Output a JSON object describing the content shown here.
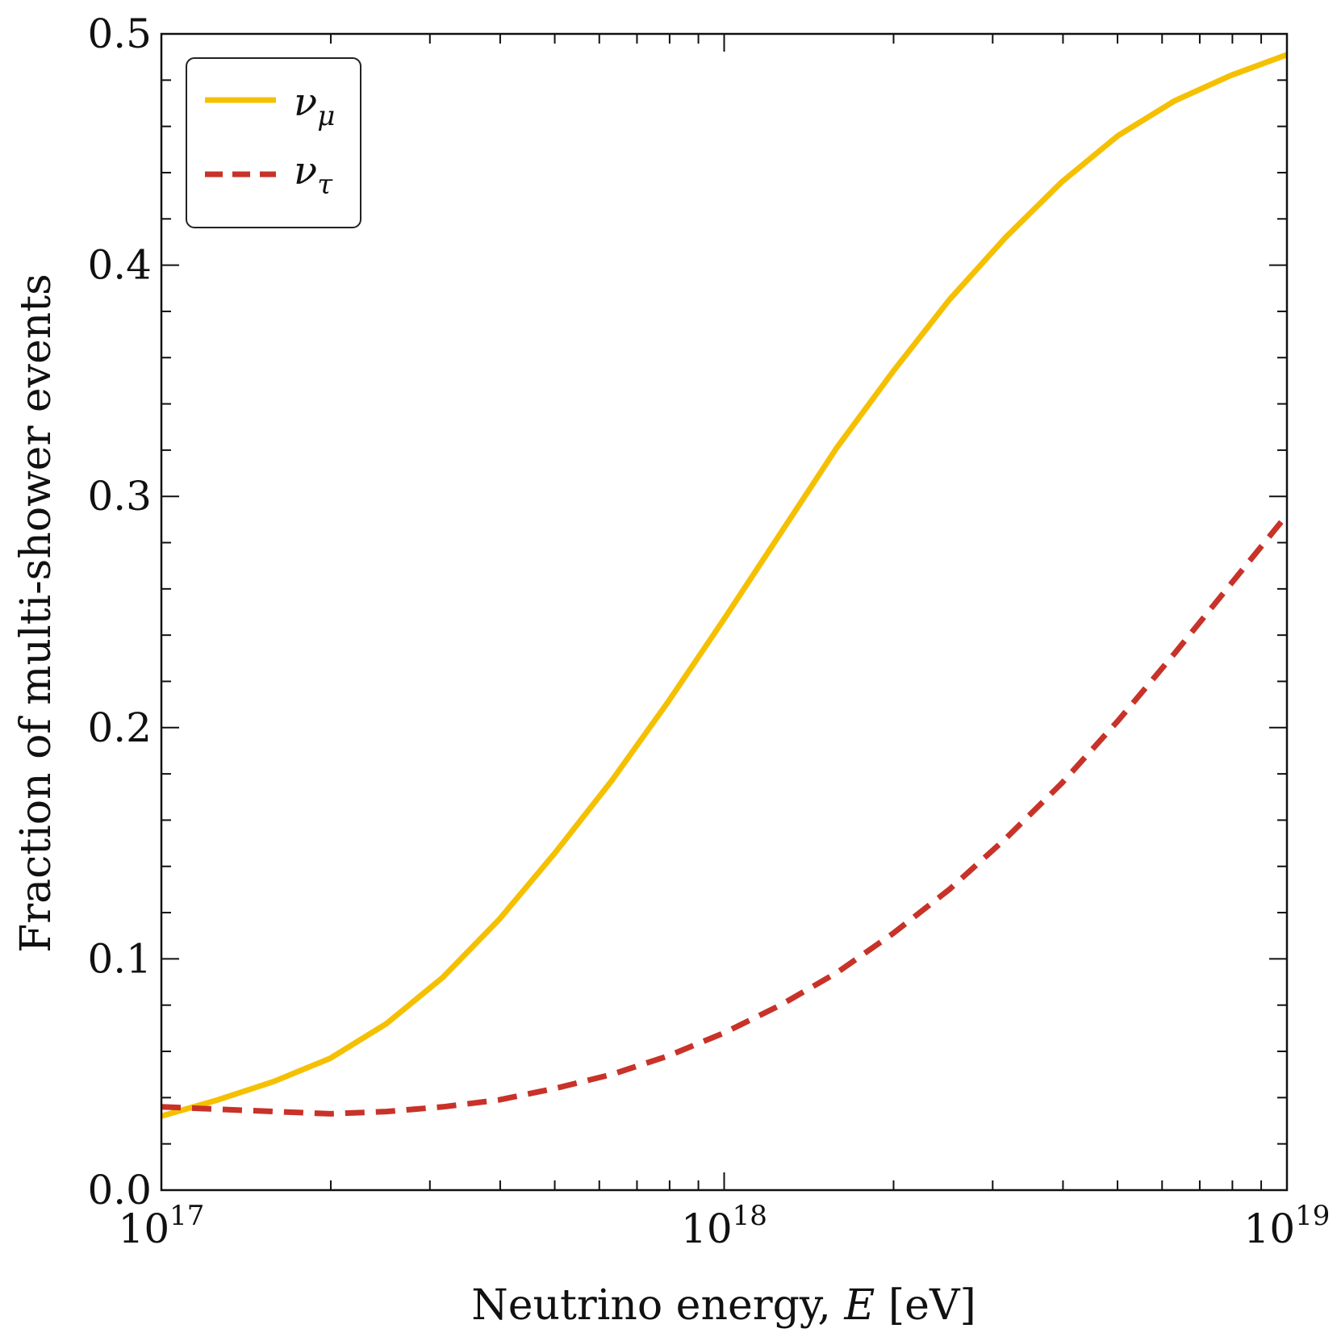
{
  "chart_data": {
    "type": "line",
    "xscale": "log",
    "xlim": [
      1e+17,
      1e+19
    ],
    "ylim": [
      0.0,
      0.5
    ],
    "xlabel": {
      "text": "Neutrino energy, ",
      "var": "E",
      "unit": " [eV]"
    },
    "ylabel": "Fraction of multi-shower events",
    "x_ticks": [
      {
        "value": 1e+17,
        "base": "10",
        "exp": "17"
      },
      {
        "value": 1e+18,
        "base": "10",
        "exp": "18"
      },
      {
        "value": 1e+19,
        "base": "10",
        "exp": "19"
      }
    ],
    "y_ticks": [
      {
        "value": 0.0,
        "label": "0.0"
      },
      {
        "value": 0.1,
        "label": "0.1"
      },
      {
        "value": 0.2,
        "label": "0.2"
      },
      {
        "value": 0.3,
        "label": "0.3"
      },
      {
        "value": 0.4,
        "label": "0.4"
      },
      {
        "value": 0.5,
        "label": "0.5"
      }
    ],
    "y_minor_step": 0.02,
    "legend_position": "top-left",
    "series": [
      {
        "name": "nu_mu",
        "symbol": "ν",
        "subscript": "μ",
        "style": "solid",
        "color": "#F5C000",
        "log10_x": [
          17.0,
          17.1,
          17.2,
          17.3,
          17.4,
          17.5,
          17.6,
          17.7,
          17.8,
          17.9,
          18.0,
          18.1,
          18.2,
          18.3,
          18.4,
          18.5,
          18.6,
          18.7,
          18.8,
          18.9,
          19.0
        ],
        "y": [
          0.032,
          0.039,
          0.047,
          0.057,
          0.072,
          0.092,
          0.117,
          0.146,
          0.177,
          0.211,
          0.247,
          0.284,
          0.321,
          0.354,
          0.385,
          0.412,
          0.436,
          0.456,
          0.471,
          0.482,
          0.491
        ]
      },
      {
        "name": "nu_tau",
        "symbol": "ν",
        "subscript": "τ",
        "style": "dashed",
        "color": "#C83228",
        "log10_x": [
          17.0,
          17.1,
          17.2,
          17.3,
          17.4,
          17.5,
          17.6,
          17.7,
          17.8,
          17.9,
          18.0,
          18.1,
          18.2,
          18.3,
          18.4,
          18.5,
          18.6,
          18.7,
          18.8,
          18.9,
          19.0
        ],
        "y": [
          0.036,
          0.035,
          0.034,
          0.033,
          0.034,
          0.036,
          0.039,
          0.044,
          0.05,
          0.058,
          0.068,
          0.08,
          0.094,
          0.111,
          0.13,
          0.152,
          0.176,
          0.203,
          0.232,
          0.262,
          0.292
        ]
      }
    ]
  }
}
